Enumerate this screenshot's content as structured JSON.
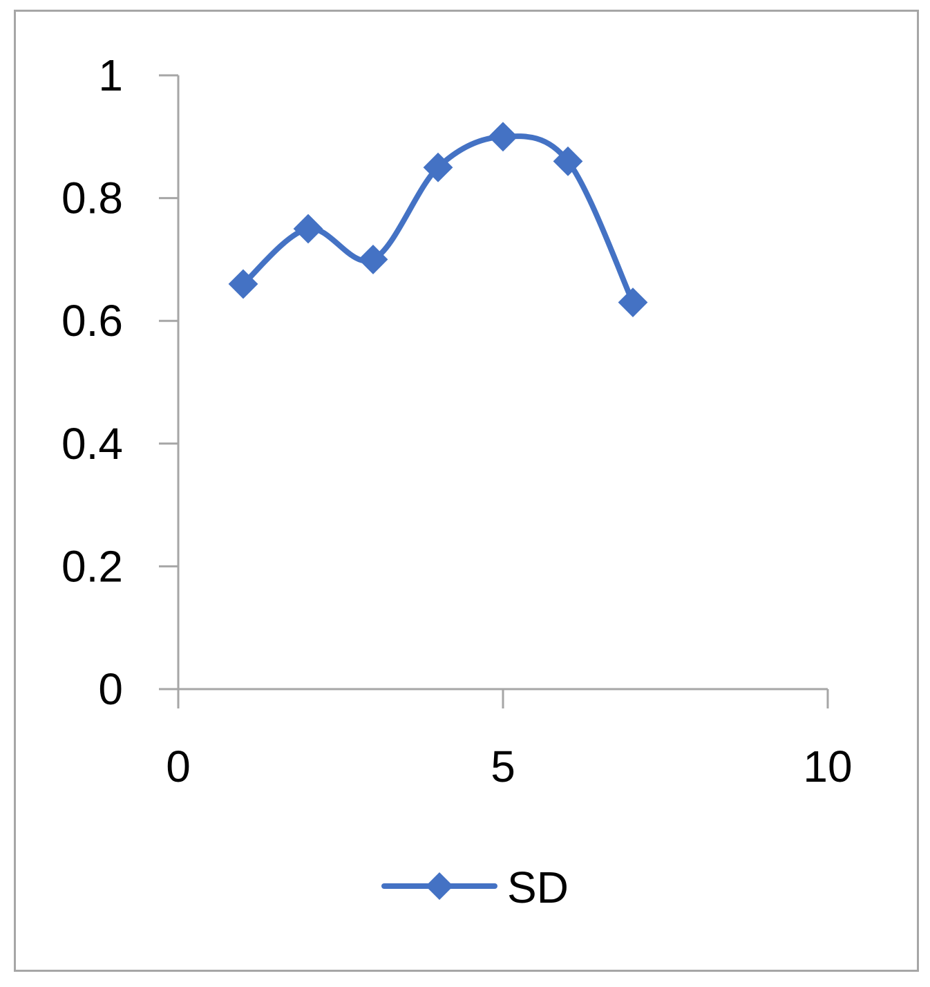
{
  "chart_data": {
    "type": "scatter",
    "line_style": "smooth",
    "marker": "diamond",
    "series": [
      {
        "name": "SD",
        "color": "#4472c4",
        "x": [
          1,
          2,
          3,
          4,
          5,
          6,
          7
        ],
        "y": [
          0.66,
          0.75,
          0.7,
          0.85,
          0.9,
          0.86,
          0.63
        ]
      }
    ],
    "xlim": [
      0,
      10
    ],
    "ylim": [
      0,
      1
    ],
    "x_ticks": [
      0,
      5,
      10
    ],
    "y_ticks": [
      0,
      0.2,
      0.4,
      0.6,
      0.8,
      1
    ],
    "x_tick_labels": [
      "0",
      "5",
      "10"
    ],
    "y_tick_labels": [
      "0",
      "0.2",
      "0.4",
      "0.6",
      "0.8",
      "1"
    ],
    "grid": false,
    "legend_position": "bottom",
    "axis_color": "#a6a6a6"
  }
}
